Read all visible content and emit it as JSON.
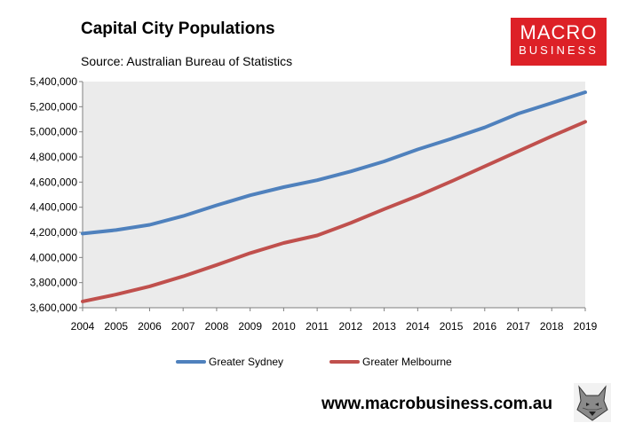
{
  "header": {
    "title": "Capital City Populations",
    "subtitle": "Source: Australian Bureau of Statistics"
  },
  "logo": {
    "line1": "MACRO",
    "line2": "BUSINESS",
    "color": "#dd2127"
  },
  "footer": {
    "website": "www.macrobusiness.com.au",
    "mascot_icon": "wolf-icon"
  },
  "chart_data": {
    "type": "line",
    "title": "Capital City Populations",
    "xlabel": "",
    "ylabel": "",
    "categories": [
      "2004",
      "2005",
      "2006",
      "2007",
      "2008",
      "2009",
      "2010",
      "2011",
      "2012",
      "2013",
      "2014",
      "2015",
      "2016",
      "2017",
      "2018",
      "2019"
    ],
    "ylim": [
      3600000,
      5400000
    ],
    "yticks": [
      3600000,
      3800000,
      4000000,
      4200000,
      4400000,
      4600000,
      4800000,
      5000000,
      5200000,
      5400000
    ],
    "ytick_labels": [
      "3,600,000",
      "3,800,000",
      "4,000,000",
      "4,200,000",
      "4,400,000",
      "4,600,000",
      "4,800,000",
      "5,000,000",
      "5,200,000",
      "5,400,000"
    ],
    "grid": false,
    "legend": "bottom",
    "plot_background": "#ebebeb",
    "series": [
      {
        "name": "Greater Sydney",
        "color": "#4f81bd",
        "values": [
          4190000,
          4218000,
          4260000,
          4330000,
          4415000,
          4495000,
          4560000,
          4615000,
          4685000,
          4765000,
          4860000,
          4945000,
          5035000,
          5145000,
          5230000,
          5315000
        ]
      },
      {
        "name": "Greater Melbourne",
        "color": "#c0504d",
        "values": [
          3650000,
          3705000,
          3770000,
          3850000,
          3940000,
          4035000,
          4115000,
          4175000,
          4275000,
          4385000,
          4490000,
          4605000,
          4725000,
          4845000,
          4965000,
          5080000
        ]
      }
    ]
  }
}
